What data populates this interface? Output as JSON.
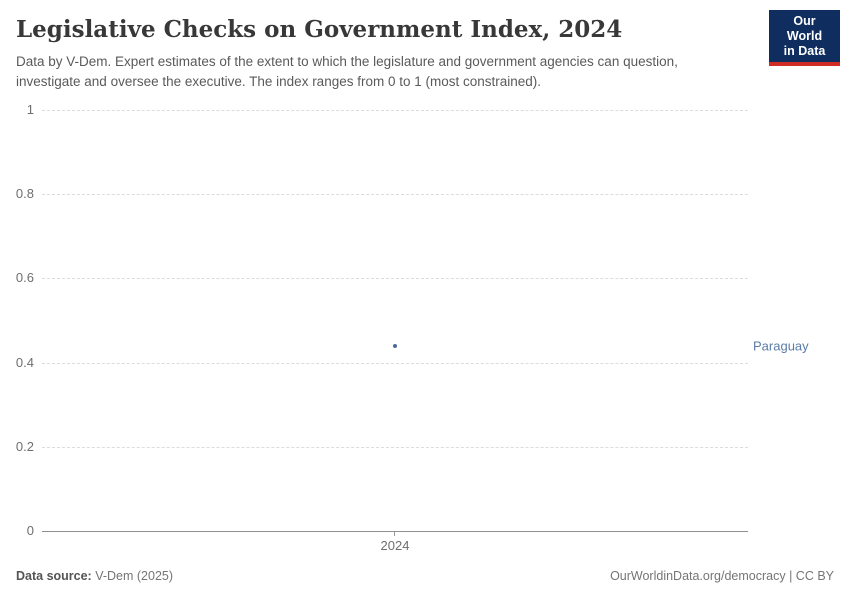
{
  "header": {
    "title": "Legislative Checks on Government Index, 2024",
    "subtitle_line1": "Data by V-Dem. Expert estimates of the extent to which the legislature and government agencies can question,",
    "subtitle_line2": "investigate and oversee the executive. The index ranges from 0 to 1 (most constrained).",
    "logo_line1": "Our World",
    "logo_line2": "in Data"
  },
  "chart_data": {
    "type": "scatter",
    "title": "Legislative Checks on Government Index, 2024",
    "x": [
      2024
    ],
    "series": [
      {
        "name": "Paraguay",
        "values": [
          0.44
        ],
        "color": "#4C6A9C"
      }
    ],
    "ylim": [
      0,
      1
    ],
    "yticks": [
      0,
      0.2,
      0.4,
      0.6,
      0.8,
      1
    ],
    "xlabel": "",
    "ylabel": "",
    "grid": "horizontal-dashed",
    "legend_position": "entity-label-right"
  },
  "colors": {
    "accent_blue": "#4C6A9C",
    "entity_label_blue": "#5B7CA8",
    "logo_navy": "#0F2E5F",
    "logo_red": "#CF2D24"
  },
  "footer": {
    "source_label": "Data source:",
    "source_value": "V-Dem (2025)",
    "credit": "OurWorldinData.org/democracy | CC BY"
  }
}
